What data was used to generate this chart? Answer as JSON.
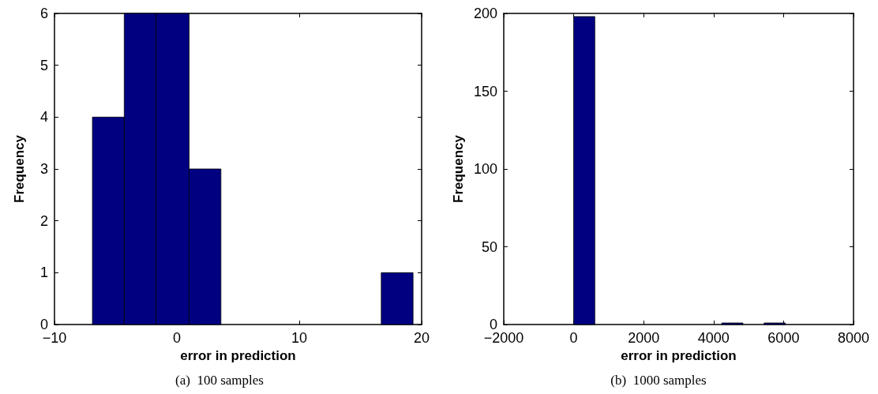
{
  "chart_data": [
    {
      "type": "histogram",
      "xlabel": "error in prediction",
      "ylabel": "Frequency",
      "bins": [
        -6.9,
        -4.3,
        -1.7,
        1,
        3.6,
        16.7,
        19.3
      ],
      "values": [
        4,
        6,
        6,
        3,
        0,
        1
      ],
      "color": "#000080",
      "xlim": [
        -10,
        20
      ],
      "xticks": [
        -10,
        0,
        10,
        20
      ],
      "ylim": [
        0,
        6
      ],
      "yticks": [
        0,
        1,
        2,
        3,
        4,
        5,
        6
      ],
      "grid": false,
      "annotations": [
        "(a)  100 samples"
      ]
    },
    {
      "type": "histogram",
      "xlabel": "error in prediction",
      "ylabel": "Frequency",
      "bins": [
        0,
        605,
        4235,
        4840,
        5445,
        6050
      ],
      "values": [
        198,
        0,
        1,
        0,
        1
      ],
      "color": "#000080",
      "xlim": [
        -2000,
        8000
      ],
      "xticks": [
        -2000,
        0,
        2000,
        4000,
        6000,
        8000
      ],
      "ylim": [
        0,
        200
      ],
      "yticks": [
        0,
        50,
        100,
        150,
        200
      ],
      "grid": false,
      "annotations": [
        "(b)  1000 samples"
      ]
    }
  ]
}
